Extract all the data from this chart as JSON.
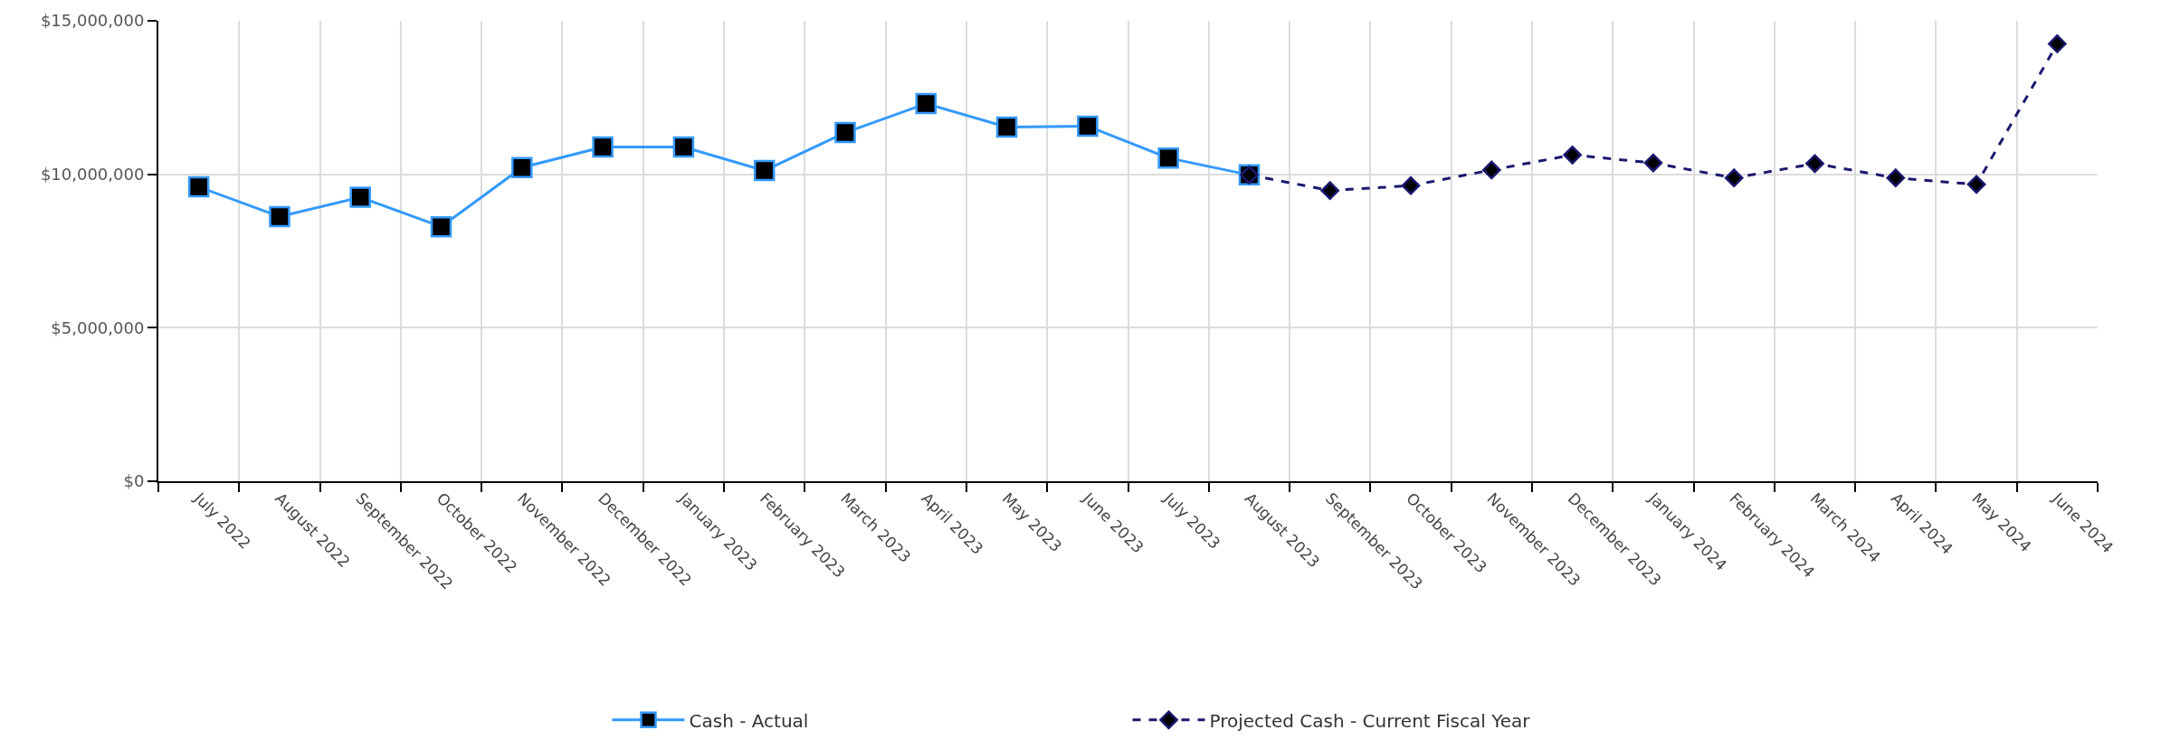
{
  "chart_data": {
    "type": "line",
    "categories": [
      "July 2022",
      "August 2022",
      "September 2022",
      "October 2022",
      "November 2022",
      "December 2022",
      "January 2023",
      "February 2023",
      "March 2023",
      "April 2023",
      "May 2023",
      "June 2023",
      "July 2023",
      "August 2023",
      "September 2023",
      "October 2023",
      "November 2023",
      "December 2023",
      "January 2024",
      "February 2024",
      "March 2024",
      "April 2024",
      "May 2024",
      "June 2024"
    ],
    "series": [
      {
        "name": "Cash - Actual",
        "color": "#3399ff",
        "marker": "square",
        "line_style": "solid",
        "values": [
          9590000,
          8620000,
          9250000,
          8290000,
          10220000,
          10890000,
          10890000,
          10120000,
          11360000,
          12300000,
          11540000,
          11570000,
          10530000,
          9980000,
          null,
          null,
          null,
          null,
          null,
          null,
          null,
          null,
          null,
          null
        ]
      },
      {
        "name": "Projected Cash - Current Fiscal Year",
        "color": "#191970",
        "marker": "diamond",
        "line_style": "dashed",
        "values": [
          null,
          null,
          null,
          null,
          null,
          null,
          null,
          null,
          null,
          null,
          null,
          null,
          null,
          9980000,
          9470000,
          9630000,
          10140000,
          10630000,
          10370000,
          9880000,
          10350000,
          9880000,
          9670000,
          14250000
        ]
      }
    ],
    "ylim": [
      0,
      15000000
    ],
    "yticks": [
      {
        "value": 0,
        "label": "$0"
      },
      {
        "value": 5000000,
        "label": "$5,000,000"
      },
      {
        "value": 10000000,
        "label": "$10,000,000"
      },
      {
        "value": 15000000,
        "label": "$15,000,000"
      }
    ],
    "grid": true,
    "legend": "bottom"
  }
}
